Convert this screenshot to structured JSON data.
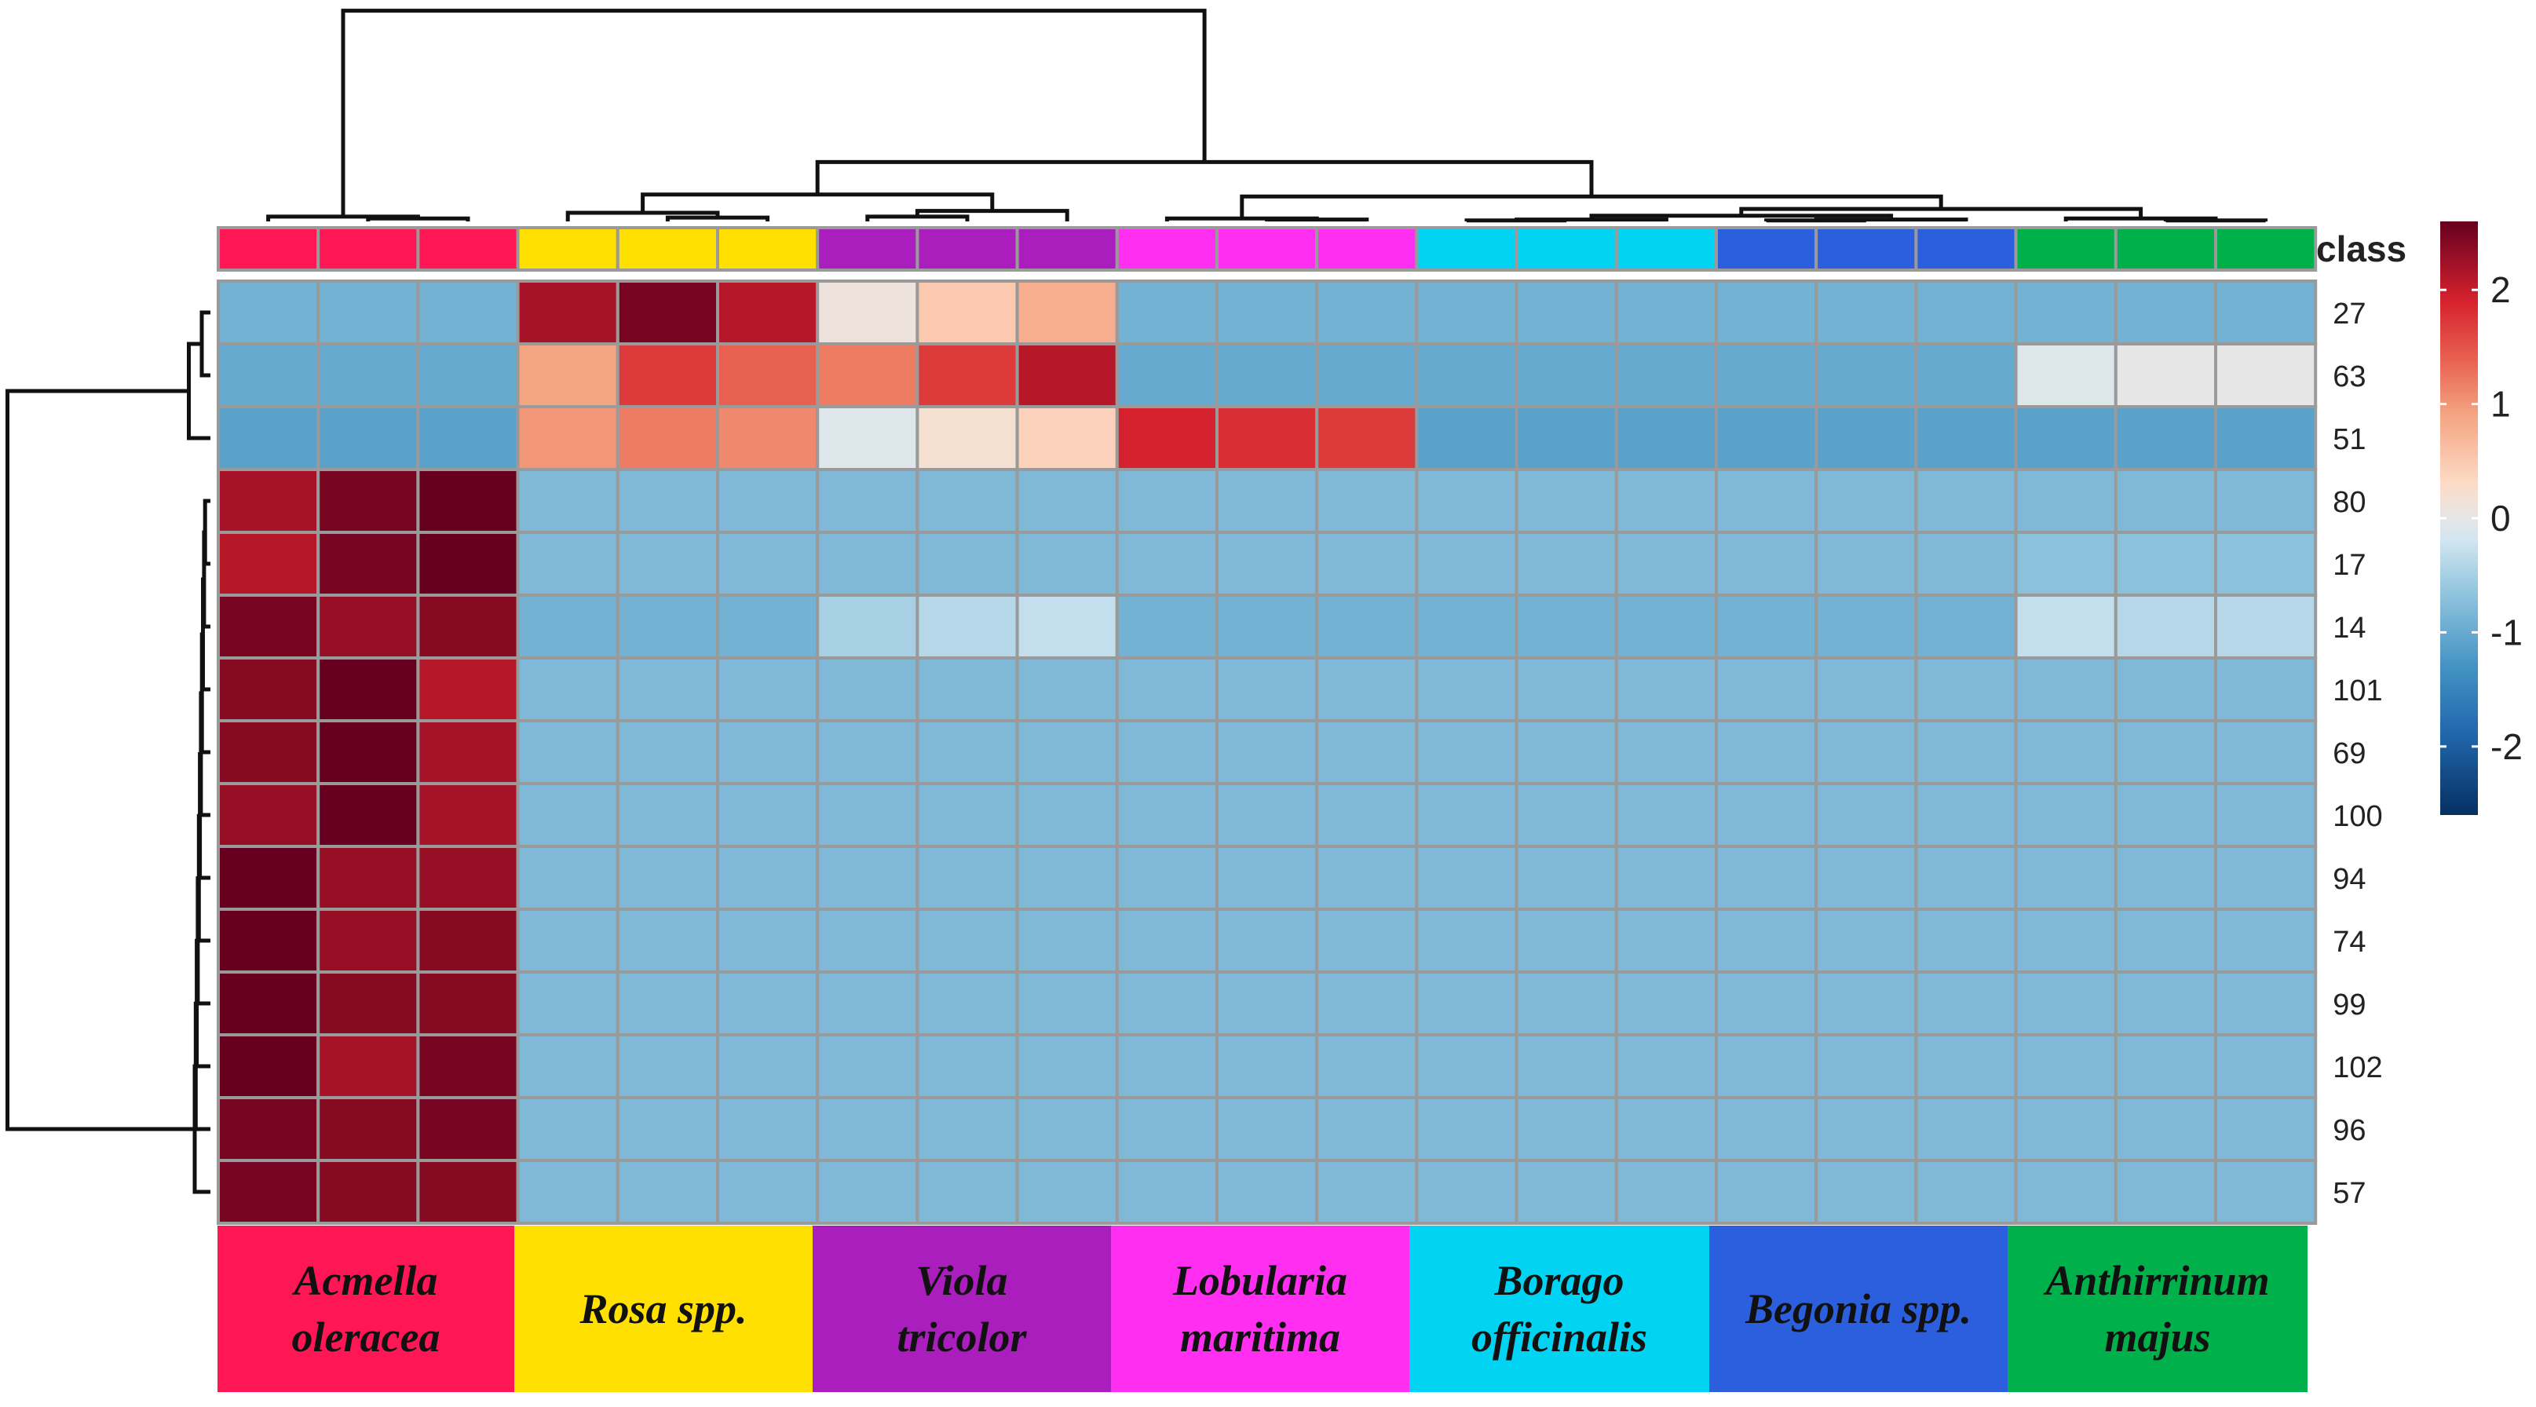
{
  "chart_data": {
    "type": "heatmap",
    "title": "",
    "annotation_label": "class",
    "groups": [
      {
        "name": "Acmella\noleracea",
        "color": "#FF1654"
      },
      {
        "name": "Rosa spp.",
        "color": "#FFE000"
      },
      {
        "name": "Viola\ntricolor",
        "color": "#A91EBC"
      },
      {
        "name": "Lobularia\nmaritima",
        "color": "#FF2EF0"
      },
      {
        "name": "Borago\nofficinalis",
        "color": "#00D4F2"
      },
      {
        "name": "Begonia spp.",
        "color": "#2B5FDE"
      },
      {
        "name": "Anthirrinum\nmajus",
        "color": "#00B04A"
      }
    ],
    "samples_per_group": 3,
    "row_labels": [
      "27",
      "63",
      "51",
      "80",
      "17",
      "14",
      "101",
      "69",
      "100",
      "94",
      "74",
      "99",
      "102",
      "96",
      "57"
    ],
    "values": [
      [
        -0.9,
        -0.9,
        -0.9,
        2.2,
        2.5,
        2.1,
        0.1,
        0.5,
        0.8,
        -0.9,
        -0.9,
        -0.9,
        -0.9,
        -0.9,
        -0.9,
        -0.9,
        -0.9,
        -0.9,
        -0.9,
        -0.9,
        -0.9
      ],
      [
        -1.0,
        -1.0,
        -1.0,
        0.9,
        1.7,
        1.4,
        1.2,
        1.7,
        2.1,
        -1.0,
        -1.0,
        -1.0,
        -1.0,
        -1.0,
        -1.0,
        -1.0,
        -1.0,
        -1.0,
        -0.1,
        0.0,
        0.0
      ],
      [
        -1.1,
        -1.1,
        -1.1,
        1.0,
        1.2,
        1.1,
        -0.1,
        0.2,
        0.4,
        1.9,
        1.8,
        1.7,
        -1.1,
        -1.1,
        -1.1,
        -1.1,
        -1.1,
        -1.1,
        -1.1,
        -1.1,
        -1.1
      ],
      [
        2.2,
        2.5,
        2.6,
        -0.8,
        -0.8,
        -0.8,
        -0.8,
        -0.8,
        -0.8,
        -0.8,
        -0.8,
        -0.8,
        -0.8,
        -0.8,
        -0.8,
        -0.8,
        -0.8,
        -0.8,
        -0.8,
        -0.8,
        -0.8
      ],
      [
        2.1,
        2.5,
        2.6,
        -0.8,
        -0.8,
        -0.8,
        -0.8,
        -0.8,
        -0.8,
        -0.8,
        -0.8,
        -0.8,
        -0.8,
        -0.8,
        -0.8,
        -0.8,
        -0.8,
        -0.8,
        -0.7,
        -0.7,
        -0.7
      ],
      [
        2.5,
        2.3,
        2.4,
        -0.9,
        -0.9,
        -0.9,
        -0.5,
        -0.4,
        -0.3,
        -0.9,
        -0.9,
        -0.9,
        -0.9,
        -0.9,
        -0.9,
        -0.9,
        -0.9,
        -0.9,
        -0.3,
        -0.4,
        -0.4
      ],
      [
        2.4,
        2.6,
        2.1,
        -0.8,
        -0.8,
        -0.8,
        -0.8,
        -0.8,
        -0.8,
        -0.8,
        -0.8,
        -0.8,
        -0.8,
        -0.8,
        -0.8,
        -0.8,
        -0.8,
        -0.8,
        -0.8,
        -0.8,
        -0.8
      ],
      [
        2.4,
        2.7,
        2.2,
        -0.8,
        -0.8,
        -0.8,
        -0.8,
        -0.8,
        -0.8,
        -0.8,
        -0.8,
        -0.8,
        -0.8,
        -0.8,
        -0.8,
        -0.8,
        -0.8,
        -0.8,
        -0.8,
        -0.8,
        -0.8
      ],
      [
        2.3,
        2.7,
        2.2,
        -0.8,
        -0.8,
        -0.8,
        -0.8,
        -0.8,
        -0.8,
        -0.8,
        -0.8,
        -0.8,
        -0.8,
        -0.8,
        -0.8,
        -0.8,
        -0.8,
        -0.8,
        -0.8,
        -0.8,
        -0.8
      ],
      [
        2.6,
        2.3,
        2.3,
        -0.8,
        -0.8,
        -0.8,
        -0.8,
        -0.8,
        -0.8,
        -0.8,
        -0.8,
        -0.8,
        -0.8,
        -0.8,
        -0.8,
        -0.8,
        -0.8,
        -0.8,
        -0.8,
        -0.8,
        -0.8
      ],
      [
        2.6,
        2.3,
        2.4,
        -0.8,
        -0.8,
        -0.8,
        -0.8,
        -0.8,
        -0.8,
        -0.8,
        -0.8,
        -0.8,
        -0.8,
        -0.8,
        -0.8,
        -0.8,
        -0.8,
        -0.8,
        -0.8,
        -0.8,
        -0.8
      ],
      [
        2.6,
        2.4,
        2.4,
        -0.8,
        -0.8,
        -0.8,
        -0.8,
        -0.8,
        -0.8,
        -0.8,
        -0.8,
        -0.8,
        -0.8,
        -0.8,
        -0.8,
        -0.8,
        -0.8,
        -0.8,
        -0.8,
        -0.8,
        -0.8
      ],
      [
        2.6,
        2.2,
        2.5,
        -0.8,
        -0.8,
        -0.8,
        -0.8,
        -0.8,
        -0.8,
        -0.8,
        -0.8,
        -0.8,
        -0.8,
        -0.8,
        -0.8,
        -0.8,
        -0.8,
        -0.8,
        -0.8,
        -0.8,
        -0.8
      ],
      [
        2.5,
        2.4,
        2.5,
        -0.8,
        -0.8,
        -0.8,
        -0.8,
        -0.8,
        -0.8,
        -0.8,
        -0.8,
        -0.8,
        -0.8,
        -0.8,
        -0.8,
        -0.8,
        -0.8,
        -0.8,
        -0.8,
        -0.8,
        -0.8
      ],
      [
        2.5,
        2.4,
        2.4,
        -0.8,
        -0.8,
        -0.8,
        -0.8,
        -0.8,
        -0.8,
        -0.8,
        -0.8,
        -0.8,
        -0.8,
        -0.8,
        -0.8,
        -0.8,
        -0.8,
        -0.8,
        -0.8,
        -0.8,
        -0.8
      ]
    ],
    "color_scale": {
      "min": -2.6,
      "max": 2.6,
      "stops": [
        {
          "value": -2.6,
          "color": "#053061"
        },
        {
          "value": -1.9,
          "color": "#2166AC"
        },
        {
          "value": -1.3,
          "color": "#4393C3"
        },
        {
          "value": -0.65,
          "color": "#92C5DE"
        },
        {
          "value": -0.2,
          "color": "#D1E5F0"
        },
        {
          "value": 0.0,
          "color": "#E6E6E6"
        },
        {
          "value": 0.3,
          "color": "#FDDBC7"
        },
        {
          "value": 0.9,
          "color": "#F4A582"
        },
        {
          "value": 1.4,
          "color": "#E8604F"
        },
        {
          "value": 1.9,
          "color": "#D6222E"
        },
        {
          "value": 2.6,
          "color": "#67001F"
        }
      ],
      "ticks": [
        "2",
        "1",
        "0",
        "-1",
        "-2"
      ]
    },
    "legend_position": "right",
    "row_dendrogram": true,
    "column_dendrogram": true
  }
}
